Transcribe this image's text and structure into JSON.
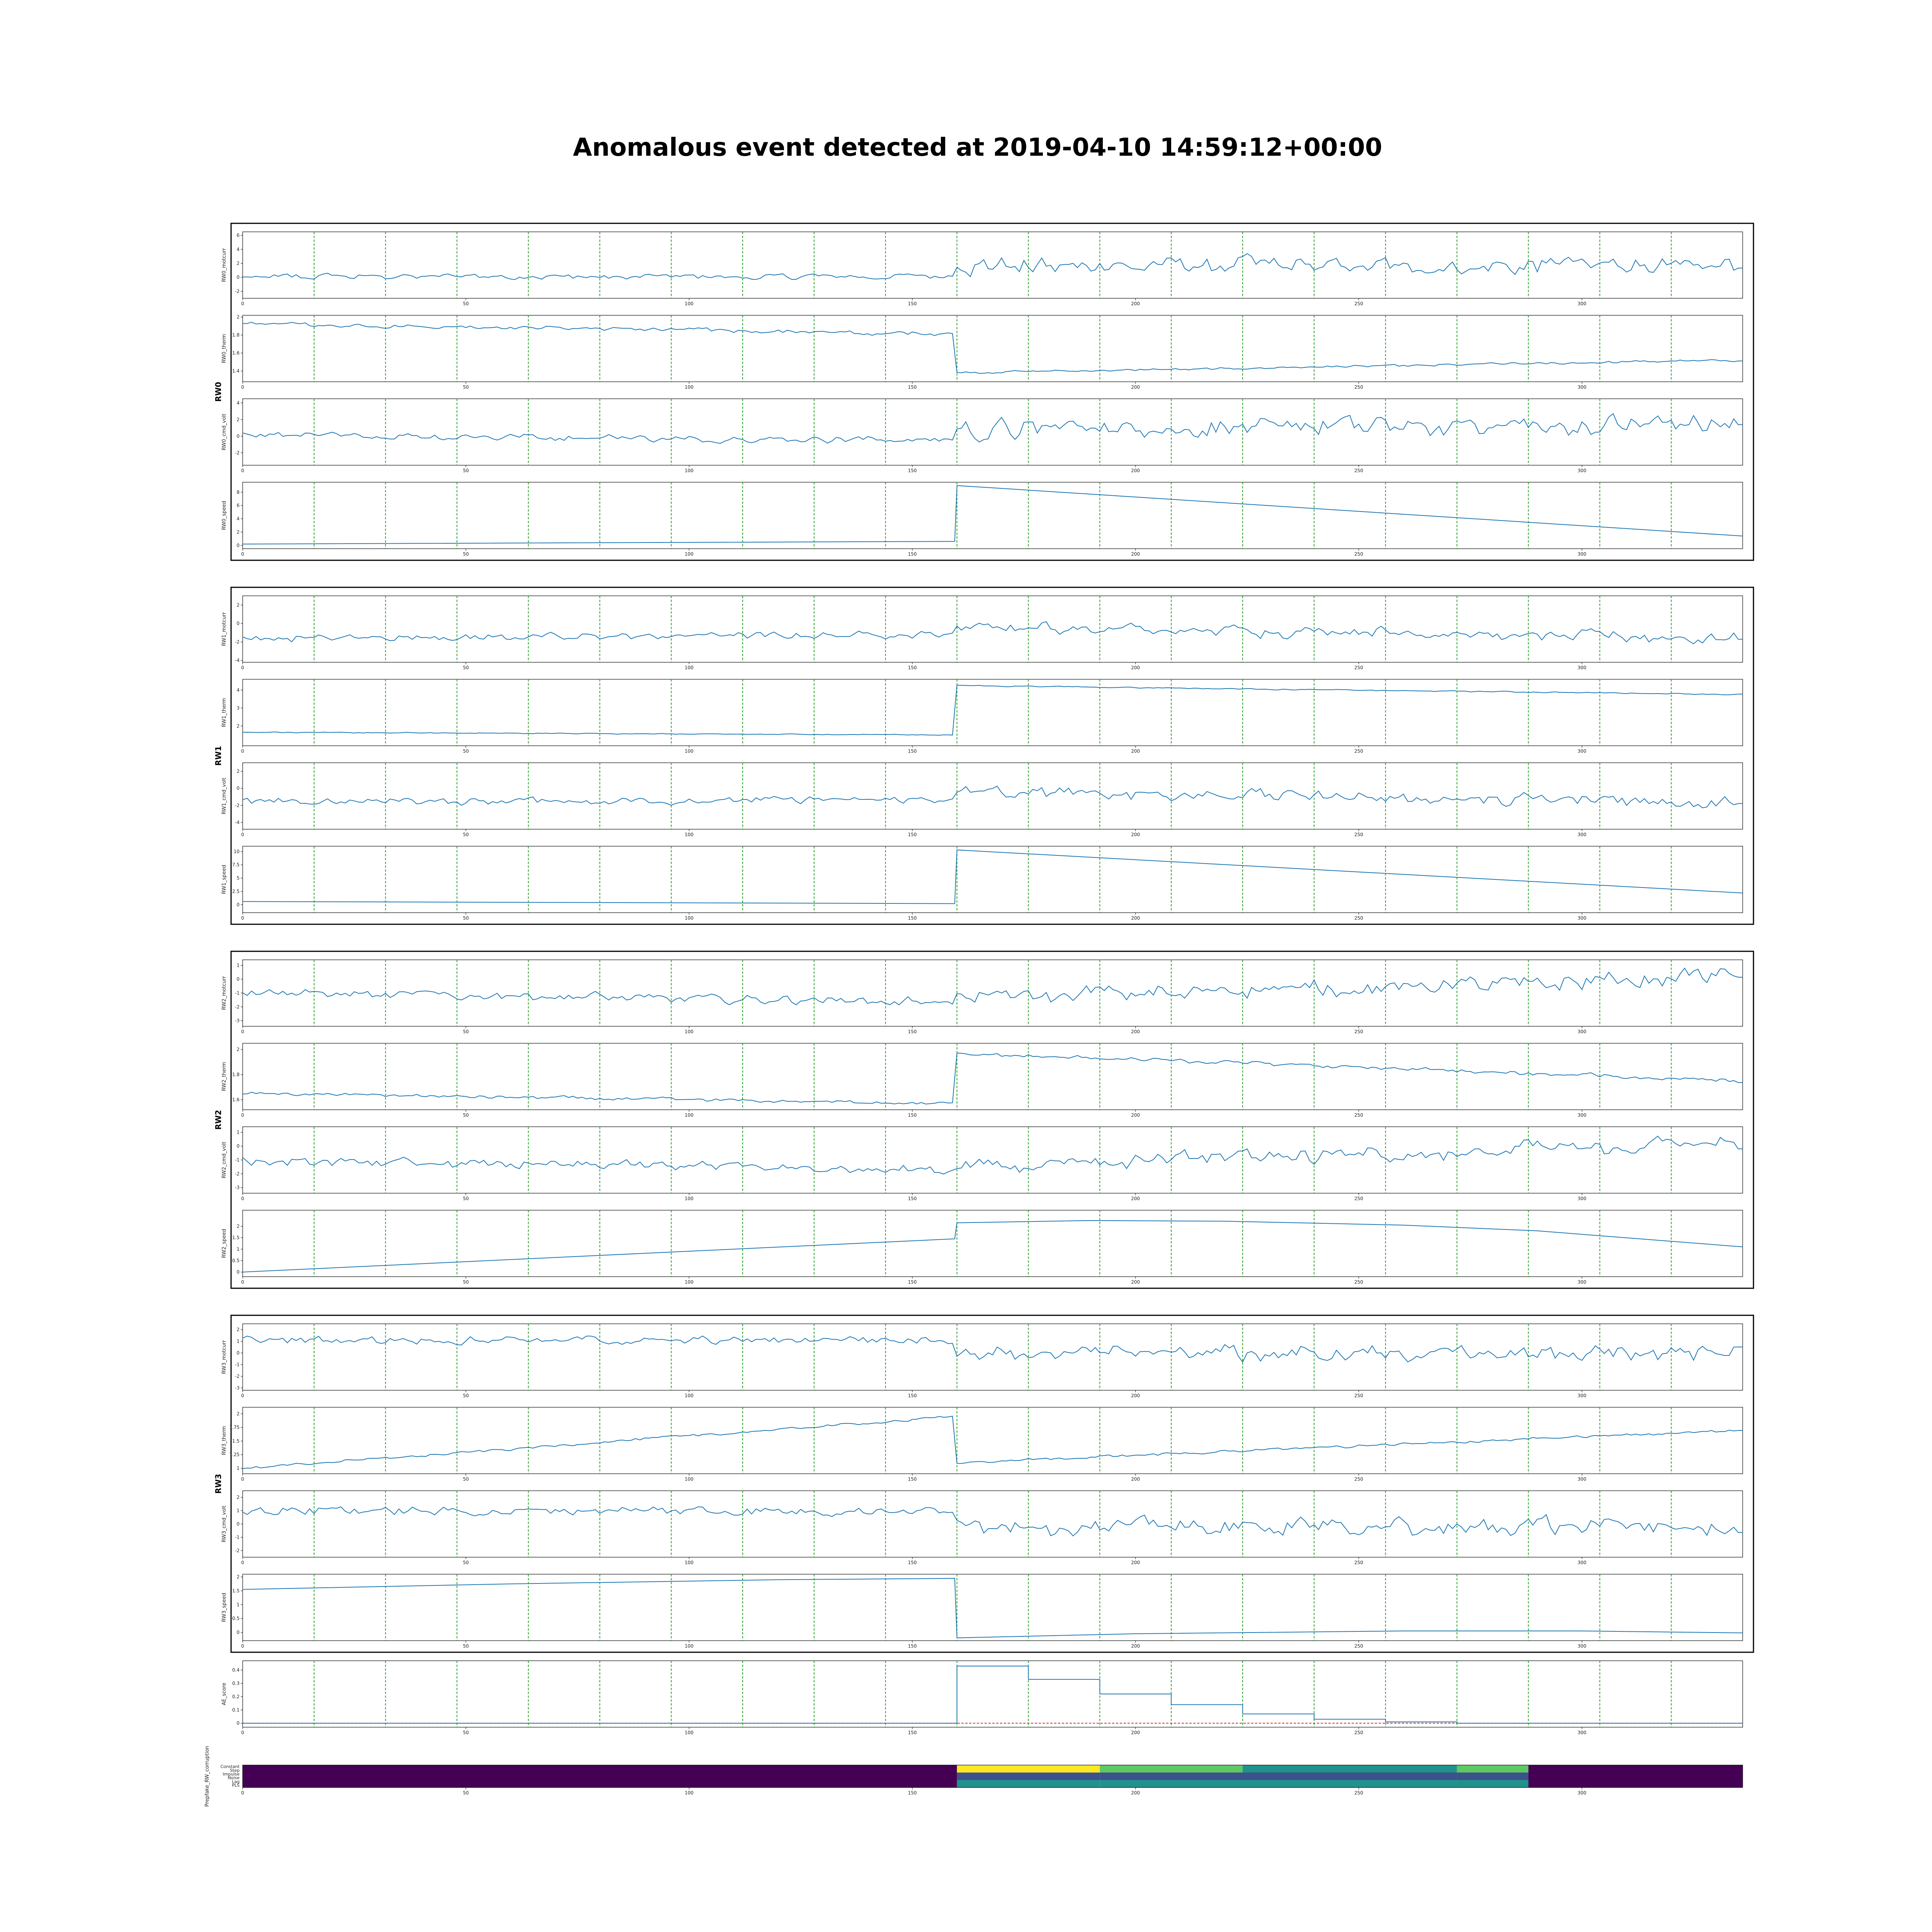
{
  "title": "Anomalous event detected at 2019-04-10 14:59:12+00:00",
  "colors": {
    "line": "#1f77b4",
    "event_marker": "#2ca02c",
    "threshold": "#d62728",
    "axis": "#000000",
    "viridis": [
      "#440154",
      "#3b528b",
      "#21918c",
      "#5ec962",
      "#fde725"
    ]
  },
  "chart_data": {
    "type": "line",
    "x_range": [
      0,
      336
    ],
    "x_ticks": [
      0,
      50,
      100,
      150,
      200,
      250,
      300
    ],
    "event_markers_x": [
      16,
      32,
      48,
      64,
      80,
      96,
      112,
      128,
      144,
      160,
      176,
      192,
      208,
      224,
      240,
      256,
      272,
      288,
      304,
      320
    ],
    "groups": [
      {
        "name": "RW0",
        "panels": [
          {
            "name": "RW0_motcurr",
            "yticks": [
              -2,
              0,
              2,
              4,
              6
            ],
            "ylim": [
              -3,
              6.5
            ],
            "kind": "noise",
            "segments": [
              {
                "x0": 0,
                "x1": 160,
                "base": 0.1,
                "drift": 0,
                "amp": 0.6
              },
              {
                "x0": 160,
                "x1": 336,
                "base": 1.5,
                "drift": 0.3,
                "amp": 1.9
              }
            ]
          },
          {
            "name": "RW0_therm",
            "yticks": [
              1.4,
              1.6,
              1.8,
              2.0
            ],
            "ylim": [
              1.28,
              2.02
            ],
            "kind": "noise",
            "segments": [
              {
                "x0": 0,
                "x1": 160,
                "base": 1.93,
                "drift": -0.12,
                "amp": 0.035
              },
              {
                "x0": 160,
                "x1": 336,
                "base": 1.38,
                "drift": 0.14,
                "amp": 0.02
              }
            ]
          },
          {
            "name": "RW0_cmd_volt",
            "yticks": [
              -2,
              0,
              2,
              4
            ],
            "ylim": [
              -3.5,
              4.5
            ],
            "kind": "noise",
            "segments": [
              {
                "x0": 0,
                "x1": 160,
                "base": 0.1,
                "drift": -0.6,
                "amp": 0.6
              },
              {
                "x0": 160,
                "x1": 336,
                "base": 0.8,
                "drift": 0.6,
                "amp": 1.8
              }
            ]
          },
          {
            "name": "RW0_speed",
            "yticks": [
              0,
              2,
              4,
              6,
              8
            ],
            "ylim": [
              -0.5,
              9.5
            ],
            "kind": "polyline",
            "points": [
              [
                0,
                0.2
              ],
              [
                159.5,
                0.6
              ],
              [
                160,
                9.0
              ],
              [
                336,
                1.4
              ]
            ]
          }
        ]
      },
      {
        "name": "RW1",
        "panels": [
          {
            "name": "RW1_motcurr",
            "yticks": [
              -4,
              -2,
              0,
              2
            ],
            "ylim": [
              -4.2,
              3.0
            ],
            "kind": "noise",
            "segments": [
              {
                "x0": 0,
                "x1": 160,
                "base": -1.6,
                "drift": 0.4,
                "amp": 0.6
              },
              {
                "x0": 160,
                "x1": 336,
                "base": -0.3,
                "drift": -1.4,
                "amp": 1.0
              }
            ]
          },
          {
            "name": "RW1_therm",
            "yticks": [
              2,
              3,
              4
            ],
            "ylim": [
              0.9,
              4.6
            ],
            "kind": "noise",
            "segments": [
              {
                "x0": 0,
                "x1": 160,
                "base": 1.65,
                "drift": -0.15,
                "amp": 0.04
              },
              {
                "x0": 160,
                "x1": 336,
                "base": 4.25,
                "drift": -0.5,
                "amp": 0.05
              }
            ]
          },
          {
            "name": "RW1_cmd_volt",
            "yticks": [
              -4,
              -2,
              0,
              2
            ],
            "ylim": [
              -4.8,
              3.0
            ],
            "kind": "noise",
            "segments": [
              {
                "x0": 0,
                "x1": 160,
                "base": -1.6,
                "drift": 0.3,
                "amp": 0.7
              },
              {
                "x0": 160,
                "x1": 336,
                "base": -0.4,
                "drift": -1.2,
                "amp": 1.1
              }
            ]
          },
          {
            "name": "RW1_speed",
            "yticks": [
              0.0,
              2.5,
              5.0,
              7.5,
              10.0
            ],
            "ylim": [
              -1.5,
              11.0
            ],
            "kind": "polyline",
            "points": [
              [
                0,
                0.6
              ],
              [
                159.5,
                0.2
              ],
              [
                160,
                10.3
              ],
              [
                336,
                2.2
              ]
            ]
          }
        ]
      },
      {
        "name": "RW2",
        "panels": [
          {
            "name": "RW2_motcurr",
            "yticks": [
              -3,
              -2,
              -1,
              0,
              1
            ],
            "ylim": [
              -3.4,
              1.4
            ],
            "kind": "noise",
            "segments": [
              {
                "x0": 0,
                "x1": 160,
                "base": -1.0,
                "drift": -0.6,
                "amp": 0.5
              },
              {
                "x0": 160,
                "x1": 336,
                "base": -1.4,
                "drift": 1.6,
                "amp": 0.9
              }
            ]
          },
          {
            "name": "RW2_therm",
            "yticks": [
              1.6,
              1.8,
              2.0
            ],
            "ylim": [
              1.52,
              2.05
            ],
            "kind": "noise",
            "segments": [
              {
                "x0": 0,
                "x1": 160,
                "base": 1.65,
                "drift": -0.08,
                "amp": 0.02
              },
              {
                "x0": 160,
                "x1": 336,
                "base": 1.97,
                "drift": -0.22,
                "amp": 0.025
              }
            ]
          },
          {
            "name": "RW2_cmd_volt",
            "yticks": [
              -3,
              -2,
              -1,
              0,
              1
            ],
            "ylim": [
              -3.4,
              1.4
            ],
            "kind": "noise",
            "segments": [
              {
                "x0": 0,
                "x1": 160,
                "base": -1.1,
                "drift": -0.6,
                "amp": 0.5
              },
              {
                "x0": 160,
                "x1": 336,
                "base": -1.4,
                "drift": 1.6,
                "amp": 0.9
              }
            ]
          },
          {
            "name": "RW2_speed",
            "yticks": [
              0.0,
              0.5,
              1.0,
              1.5,
              2.0
            ],
            "ylim": [
              -0.2,
              2.7
            ],
            "kind": "polyline",
            "points": [
              [
                0,
                0.0
              ],
              [
                159.5,
                1.45
              ],
              [
                160,
                2.15
              ],
              [
                190,
                2.25
              ],
              [
                220,
                2.22
              ],
              [
                260,
                2.05
              ],
              [
                290,
                1.8
              ],
              [
                336,
                1.1
              ]
            ]
          }
        ]
      },
      {
        "name": "RW3",
        "panels": [
          {
            "name": "RW3_motcurr",
            "yticks": [
              -3,
              -2,
              -1,
              0,
              1,
              2
            ],
            "ylim": [
              -3.2,
              2.5
            ],
            "kind": "noise",
            "segments": [
              {
                "x0": 0,
                "x1": 160,
                "base": 1.1,
                "drift": 0,
                "amp": 0.5
              },
              {
                "x0": 160,
                "x1": 336,
                "base": 0.0,
                "drift": 0,
                "amp": 1.1
              }
            ]
          },
          {
            "name": "RW3_therm",
            "yticks": [
              1.0,
              1.25,
              1.5,
              1.75,
              2.0
            ],
            "ylim": [
              0.9,
              2.12
            ],
            "kind": "noise",
            "segments": [
              {
                "x0": 0,
                "x1": 160,
                "base": 1.0,
                "drift": 0.95,
                "amp": 0.04
              },
              {
                "x0": 160,
                "x1": 336,
                "base": 1.1,
                "drift": 0.6,
                "amp": 0.04
              }
            ]
          },
          {
            "name": "RW3_cmd_volt",
            "yticks": [
              -2,
              -1,
              0,
              1,
              2
            ],
            "ylim": [
              -2.5,
              2.5
            ],
            "kind": "noise",
            "segments": [
              {
                "x0": 0,
                "x1": 160,
                "base": 1.0,
                "drift": 0,
                "amp": 0.5
              },
              {
                "x0": 160,
                "x1": 336,
                "base": -0.2,
                "drift": 0,
                "amp": 1.1
              }
            ]
          },
          {
            "name": "RW3_speed",
            "yticks": [
              0.0,
              0.5,
              1.0,
              1.5,
              2.0
            ],
            "ylim": [
              -0.3,
              2.1
            ],
            "kind": "polyline",
            "points": [
              [
                0,
                1.55
              ],
              [
                60,
                1.75
              ],
              [
                120,
                1.9
              ],
              [
                159.5,
                1.95
              ],
              [
                160,
                -0.2
              ],
              [
                200,
                -0.05
              ],
              [
                260,
                0.05
              ],
              [
                300,
                0.05
              ],
              [
                336,
                -0.02
              ]
            ]
          }
        ]
      }
    ],
    "ae_score": {
      "name": "AE_score",
      "yticks": [
        0.0,
        0.1,
        0.2,
        0.3,
        0.4
      ],
      "ylim": [
        -0.03,
        0.47
      ],
      "threshold": 0.0,
      "steps": [
        [
          0,
          0.0
        ],
        [
          160,
          0.0
        ],
        [
          160,
          0.43
        ],
        [
          176,
          0.43
        ],
        [
          176,
          0.33
        ],
        [
          192,
          0.33
        ],
        [
          192,
          0.22
        ],
        [
          208,
          0.22
        ],
        [
          208,
          0.14
        ],
        [
          224,
          0.14
        ],
        [
          224,
          0.07
        ],
        [
          240,
          0.07
        ],
        [
          240,
          0.03
        ],
        [
          256,
          0.03
        ],
        [
          256,
          0.01
        ],
        [
          272,
          0.01
        ],
        [
          272,
          0.0
        ],
        [
          336,
          0.0
        ]
      ]
    },
    "corruption": {
      "name": "Prepfake_RW_corruption",
      "categories": [
        "Constant",
        "Step",
        "Impulse",
        "Noise",
        "Lag",
        "PLS"
      ],
      "segments": [
        {
          "x0": 0,
          "x1": 160,
          "rows": [
            0,
            0,
            0,
            0,
            0,
            0
          ]
        },
        {
          "x0": 160,
          "x1": 192,
          "rows": [
            4,
            4,
            1,
            1,
            2,
            2
          ]
        },
        {
          "x0": 192,
          "x1": 224,
          "rows": [
            3,
            3,
            1,
            1,
            2,
            2
          ]
        },
        {
          "x0": 224,
          "x1": 272,
          "rows": [
            2,
            2,
            1,
            1,
            2,
            2
          ]
        },
        {
          "x0": 272,
          "x1": 288,
          "rows": [
            3,
            3,
            1,
            1,
            2,
            2
          ]
        },
        {
          "x0": 288,
          "x1": 336,
          "rows": [
            0,
            0,
            0,
            0,
            0,
            0
          ]
        }
      ]
    }
  }
}
